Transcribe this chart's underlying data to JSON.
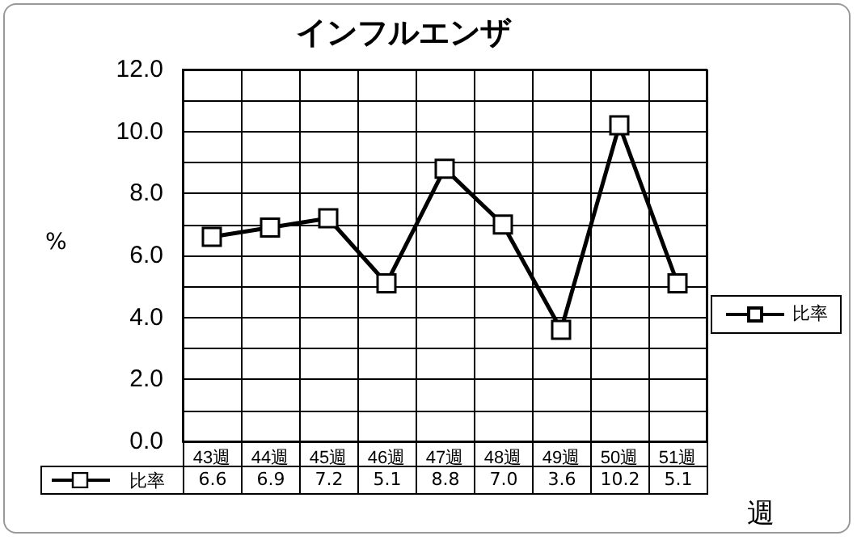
{
  "chart_data": {
    "type": "line",
    "title": "インフルエンザ",
    "xlabel": "週",
    "ylabel": "%",
    "categories": [
      "43週",
      "44週",
      "45週",
      "46週",
      "47週",
      "48週",
      "49週",
      "50週",
      "51週"
    ],
    "series": [
      {
        "name": "比率",
        "color": "#000000",
        "values": [
          6.6,
          6.9,
          7.2,
          5.1,
          8.8,
          7.0,
          3.6,
          10.2,
          5.1
        ],
        "value_labels": [
          "6.6",
          "6.9",
          "7.2",
          "5.1",
          "8.8",
          "7.0",
          "3.6",
          "10.2",
          "5.1"
        ]
      }
    ],
    "ylim": [
      0,
      12
    ],
    "yticks": [
      {
        "value": 0,
        "label": "0.0"
      },
      {
        "value": 1,
        "label": null
      },
      {
        "value": 2,
        "label": "2.0"
      },
      {
        "value": 3,
        "label": null
      },
      {
        "value": 4,
        "label": "4.0"
      },
      {
        "value": 5,
        "label": null
      },
      {
        "value": 6,
        "label": "6.0"
      },
      {
        "value": 7,
        "label": null
      },
      {
        "value": 8,
        "label": "8.0"
      },
      {
        "value": 9,
        "label": null
      },
      {
        "value": 10,
        "label": "10.0"
      },
      {
        "value": 11,
        "label": null
      },
      {
        "value": 12,
        "label": "12.0"
      }
    ],
    "grid": true,
    "legend": "right",
    "marker": "square",
    "line_style": "solid"
  }
}
